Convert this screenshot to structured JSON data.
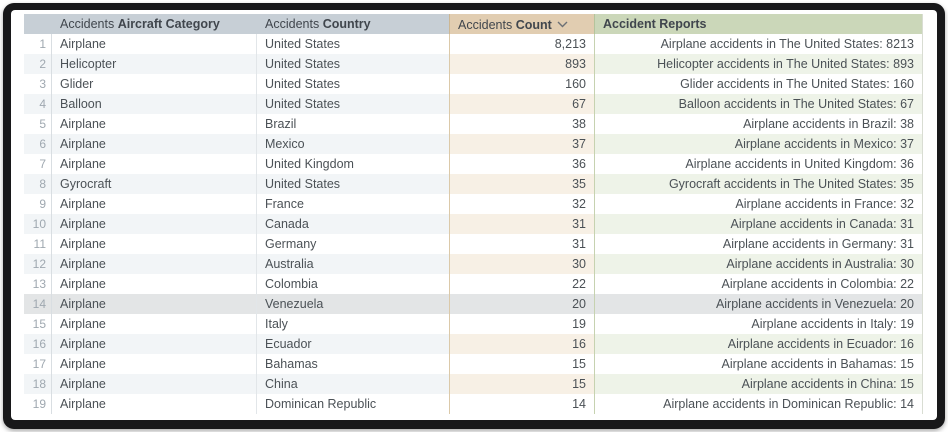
{
  "table": {
    "headers": {
      "rownum": {
        "label": ""
      },
      "category": {
        "prefix": "Accidents",
        "label": "Aircraft Category"
      },
      "country": {
        "prefix": "Accidents",
        "label": "Country"
      },
      "count": {
        "prefix": "Accidents",
        "label": "Count",
        "sort": "descending"
      },
      "reports": {
        "label": "Accident Reports"
      }
    },
    "rows": [
      {
        "n": 1,
        "category": "Airplane",
        "country": "United States",
        "count": "8,213",
        "report": "Airplane accidents in The United States: 8213"
      },
      {
        "n": 2,
        "category": "Helicopter",
        "country": "United States",
        "count": "893",
        "report": "Helicopter accidents in The United States: 893"
      },
      {
        "n": 3,
        "category": "Glider",
        "country": "United States",
        "count": "160",
        "report": "Glider accidents in The United States: 160"
      },
      {
        "n": 4,
        "category": "Balloon",
        "country": "United States",
        "count": "67",
        "report": "Balloon accidents in The United States: 67"
      },
      {
        "n": 5,
        "category": "Airplane",
        "country": "Brazil",
        "count": "38",
        "report": "Airplane accidents in Brazil: 38"
      },
      {
        "n": 6,
        "category": "Airplane",
        "country": "Mexico",
        "count": "37",
        "report": "Airplane accidents in Mexico: 37"
      },
      {
        "n": 7,
        "category": "Airplane",
        "country": "United Kingdom",
        "count": "36",
        "report": "Airplane accidents in United Kingdom: 36"
      },
      {
        "n": 8,
        "category": "Gyrocraft",
        "country": "United States",
        "count": "35",
        "report": "Gyrocraft accidents in The United States: 35"
      },
      {
        "n": 9,
        "category": "Airplane",
        "country": "France",
        "count": "32",
        "report": "Airplane accidents in France: 32"
      },
      {
        "n": 10,
        "category": "Airplane",
        "country": "Canada",
        "count": "31",
        "report": "Airplane accidents in Canada: 31"
      },
      {
        "n": 11,
        "category": "Airplane",
        "country": "Germany",
        "count": "31",
        "report": "Airplane accidents in Germany: 31"
      },
      {
        "n": 12,
        "category": "Airplane",
        "country": "Australia",
        "count": "30",
        "report": "Airplane accidents in Australia: 30"
      },
      {
        "n": 13,
        "category": "Airplane",
        "country": "Colombia",
        "count": "22",
        "report": "Airplane accidents in Colombia: 22"
      },
      {
        "n": 14,
        "category": "Airplane",
        "country": "Venezuela",
        "count": "20",
        "report": "Airplane accidents in Venezuela: 20",
        "highlighted": true
      },
      {
        "n": 15,
        "category": "Airplane",
        "country": "Italy",
        "count": "19",
        "report": "Airplane accidents in Italy: 19"
      },
      {
        "n": 16,
        "category": "Airplane",
        "country": "Ecuador",
        "count": "16",
        "report": "Airplane accidents in Ecuador: 16"
      },
      {
        "n": 17,
        "category": "Airplane",
        "country": "Bahamas",
        "count": "15",
        "report": "Airplane accidents in Bahamas: 15"
      },
      {
        "n": 18,
        "category": "Airplane",
        "country": "China",
        "count": "15",
        "report": "Airplane accidents in China: 15"
      },
      {
        "n": 19,
        "category": "Airplane",
        "country": "Dominican Republic",
        "count": "14",
        "report": "Airplane accidents in Dominican Republic: 14"
      }
    ],
    "colors": {
      "header_neutral": "#c7cfd6",
      "header_count": "#e1cdb1",
      "header_reports": "#cbd7b9",
      "stripe_neutral": "#f2f5f7",
      "stripe_count": "#f7f0e5",
      "stripe_reports": "#eef3e8",
      "highlight_row": "#e3e5e6",
      "frame": "#18181a"
    }
  }
}
